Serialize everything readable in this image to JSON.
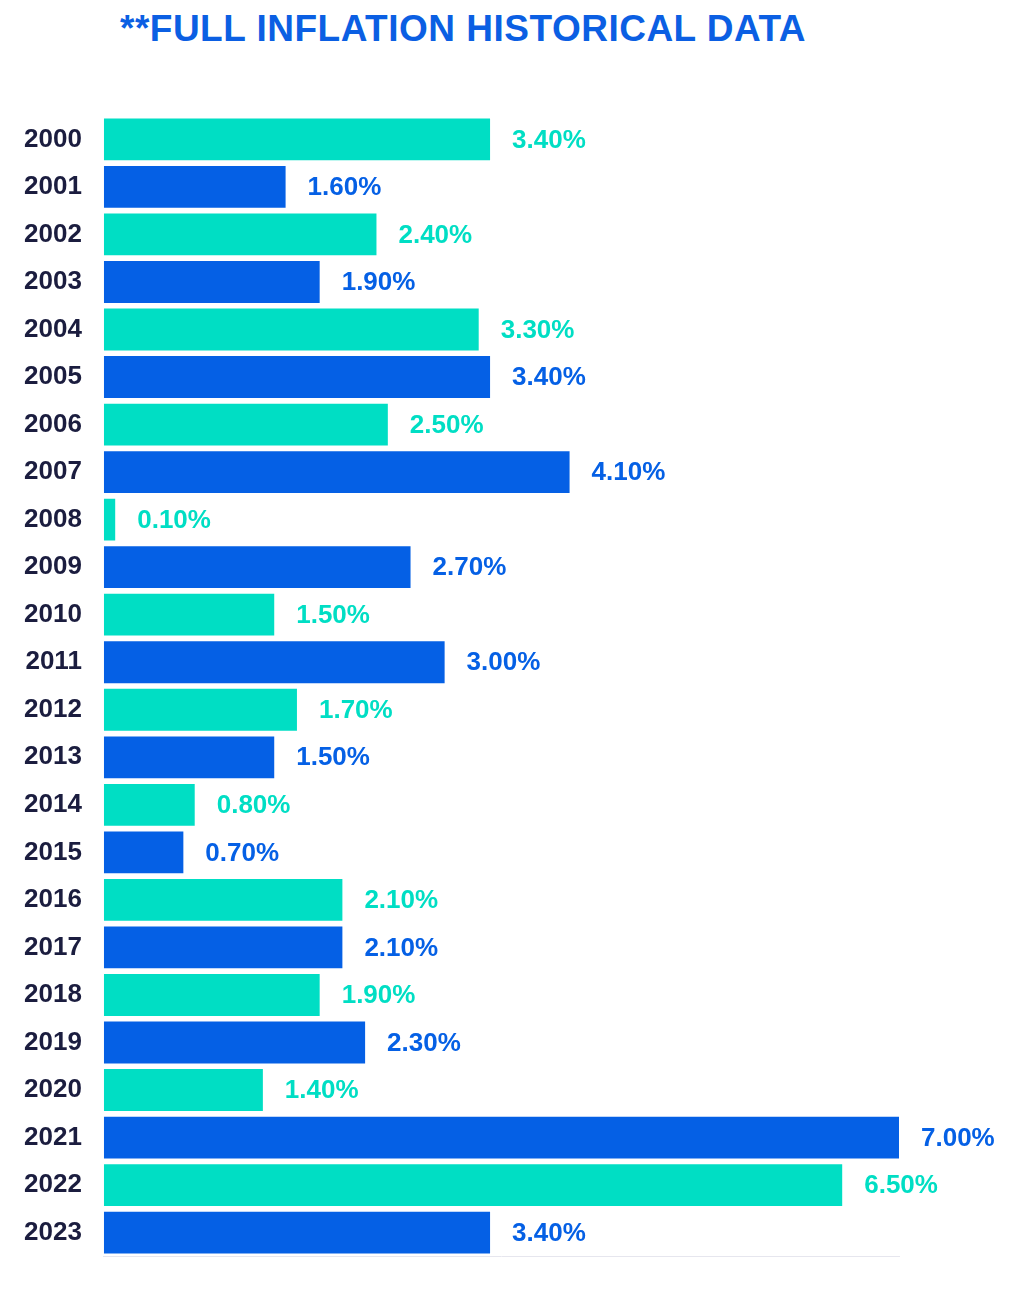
{
  "chart_data": {
    "type": "bar",
    "title": "**FULL INFLATION HISTORICAL DATA",
    "orientation": "horizontal",
    "categories": [
      "2000",
      "2001",
      "2002",
      "2003",
      "2004",
      "2005",
      "2006",
      "2007",
      "2008",
      "2009",
      "2010",
      "2011",
      "2012",
      "2013",
      "2014",
      "2015",
      "2016",
      "2017",
      "2018",
      "2019",
      "2020",
      "2021",
      "2022",
      "2023"
    ],
    "values": [
      3.4,
      1.6,
      2.4,
      1.9,
      3.3,
      3.4,
      2.5,
      4.1,
      0.1,
      2.7,
      1.5,
      3.0,
      1.7,
      1.5,
      0.8,
      0.7,
      2.1,
      2.1,
      1.9,
      2.3,
      1.4,
      7.0,
      6.5,
      3.4
    ],
    "value_labels": [
      "3.40%",
      "1.60%",
      "2.40%",
      "1.90%",
      "3.30%",
      "3.40%",
      "2.50%",
      "4.10%",
      "0.10%",
      "2.70%",
      "1.50%",
      "3.00%",
      "1.70%",
      "1.50%",
      "0.80%",
      "0.70%",
      "2.10%",
      "2.10%",
      "1.90%",
      "2.30%",
      "1.40%",
      "7.00%",
      "6.50%",
      "3.40%"
    ],
    "colors": [
      "#00dec4",
      "#0560e5",
      "#00dec4",
      "#0560e5",
      "#00dec4",
      "#0560e5",
      "#00dec4",
      "#0560e5",
      "#00dec4",
      "#0560e5",
      "#00dec4",
      "#0560e5",
      "#00dec4",
      "#0560e5",
      "#00dec4",
      "#0560e5",
      "#00dec4",
      "#0560e5",
      "#00dec4",
      "#0560e5",
      "#00dec4",
      "#0560e5",
      "#00dec4",
      "#0560e5"
    ],
    "xlim": [
      0,
      7
    ],
    "grid": false,
    "data_labels": true,
    "tick_labels": "y"
  }
}
